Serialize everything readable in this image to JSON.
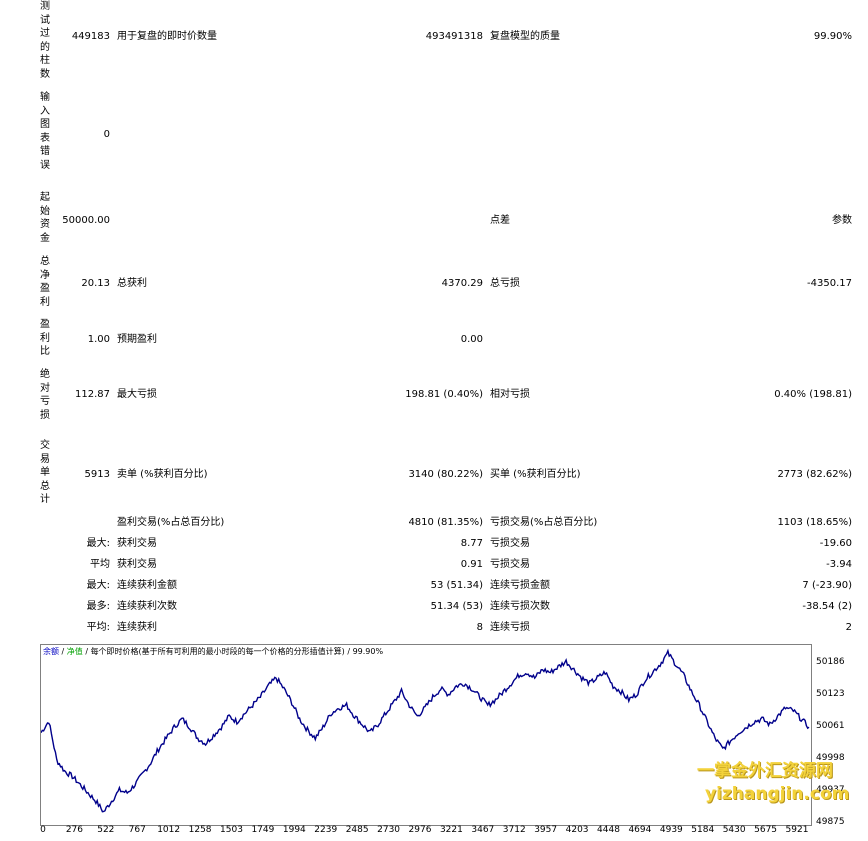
{
  "rows": {
    "bars_tested": {
      "label": "测试过的柱数",
      "value": "449183",
      "label2": "用于复盘的即时价数量",
      "value2": "493491318",
      "label3": "复盘模型的质量",
      "value3": "99.90%"
    },
    "mismatched": {
      "label": "输入图表错误",
      "value": "0"
    },
    "initial": {
      "label": "起始资金",
      "value": "50000.00",
      "label3": "点差",
      "value3": "参数"
    },
    "net_profit": {
      "label": "总净盈利",
      "value": "20.13",
      "label2": "总获利",
      "value2": "4370.29",
      "label3": "总亏损",
      "value3": "-4350.17"
    },
    "profit_factor": {
      "label": "盈利比",
      "value": "1.00",
      "label2": "预期盈利",
      "value2": "0.00"
    },
    "abs_drawdown": {
      "label": "绝对亏损",
      "value": "112.87",
      "label2": "最大亏损",
      "value2": "198.81 (0.40%)",
      "label3": "相对亏损",
      "value3": "0.40% (198.81)"
    },
    "total_trades": {
      "label": "交易单总计",
      "value": "5913",
      "label2": "卖单 (%获利百分比)",
      "value2": "3140 (80.22%)",
      "label3": "买单 (%获利百分比)",
      "value3": "2773 (82.62%)"
    },
    "profit_trades": {
      "label2": "盈利交易(%占总百分比)",
      "value2": "4810 (81.35%)",
      "label3": "亏损交易(%占总百分比)",
      "value3": "1103 (18.65%)"
    },
    "largest": {
      "prefix": "最大:",
      "label2": "获利交易",
      "value2": "8.77",
      "label3": "亏损交易",
      "value3": "-19.60"
    },
    "average": {
      "prefix": "平均",
      "label2": "获利交易",
      "value2": "0.91",
      "label3": "亏损交易",
      "value3": "-3.94"
    },
    "max_consec": {
      "prefix": "最大:",
      "label2": "连续获利金额",
      "value2": "53 (51.34)",
      "label3": "连续亏损金额",
      "value3": "7 (-23.90)"
    },
    "max_consec2": {
      "prefix": "最多:",
      "label2": "连续获利次数",
      "value2": "51.34 (53)",
      "label3": "连续亏损次数",
      "value3": "-38.54 (2)"
    },
    "avg_consec": {
      "prefix": "平均:",
      "label2": "连续获利",
      "value2": "8",
      "label3": "连续亏损",
      "value3": "2"
    }
  },
  "chart_legend": {
    "balance": "余额",
    "sep1": " / ",
    "equity": "净值",
    "desc": " / 每个即时价格(基于所有可利用的最小时段的每一个价格的分形插值计算) / 99.90%"
  },
  "watermark": {
    "line1": "一掌金外汇资源网",
    "line2": "yizhangjin.com"
  },
  "chart_data": {
    "type": "line",
    "series": [
      {
        "values": [
          50040,
          50061,
          49990,
          49970,
          49960,
          49945,
          49930,
          49915,
          49895,
          49915,
          49935,
          49930,
          49945,
          49965,
          49985,
          50010,
          50030,
          50050,
          50065,
          50050,
          50030,
          50020,
          50035,
          50050,
          50070,
          50060,
          50075,
          50090,
          50105,
          50125,
          50140,
          50120,
          50095,
          50065,
          50045,
          50030,
          50050,
          50075,
          50085,
          50090,
          50070,
          50055,
          50040,
          50055,
          50075,
          50095,
          50115,
          50090,
          50070,
          50085,
          50105,
          50120,
          50110,
          50125,
          50130,
          50120,
          50105,
          50090,
          50100,
          50115,
          50130,
          50145,
          50150,
          50140,
          50155,
          50150,
          50160,
          50170,
          50155,
          50140,
          50130,
          50140,
          50150,
          50125,
          50115,
          50100,
          50110,
          50135,
          50150,
          50165,
          50185,
          50165,
          50145,
          50115,
          50090,
          50060,
          50030,
          50010,
          50025,
          50040,
          50050,
          50060,
          50065,
          50055,
          50070,
          50085,
          50080,
          50065,
          50050
        ]
      }
    ],
    "x_ticks": [
      "0",
      "276",
      "522",
      "767",
      "1012",
      "1258",
      "1503",
      "1749",
      "1994",
      "2239",
      "2485",
      "2730",
      "2976",
      "3221",
      "3467",
      "3712",
      "3957",
      "4203",
      "4448",
      "4694",
      "4939",
      "5184",
      "5430",
      "5675",
      "5921"
    ],
    "y_ticks": [
      "50186",
      "50123",
      "50061",
      "49998",
      "49937",
      "49875"
    ],
    "ylim": [
      49875,
      50200
    ]
  },
  "colors": {
    "balance_line": "#00008b",
    "equity_text": "#00a000",
    "balance_text": "#0000c0"
  }
}
